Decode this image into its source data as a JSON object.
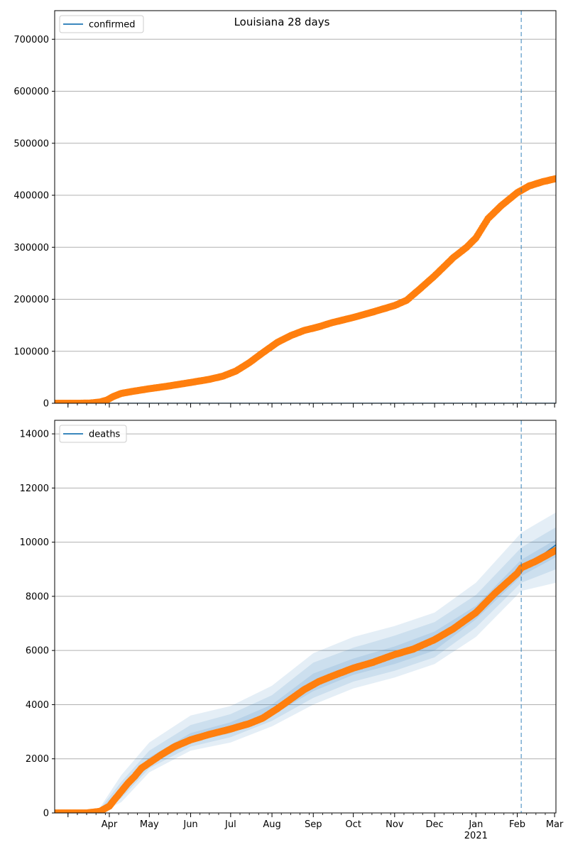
{
  "colors": {
    "observed": "#ff7f0e",
    "forecast": "#1f77b4",
    "band": "#1f77b4",
    "grid": "#b0b0b0",
    "cutoff": "#1f77b4"
  },
  "chart_data": [
    {
      "type": "line",
      "title": "Louisiana 28 days",
      "legend": [
        "confirmed"
      ],
      "legend_position": "top-left",
      "grid": "y",
      "x_range": [
        "2020-02-20",
        "2021-03-02"
      ],
      "cutoff_date": "2021-02-04",
      "ylim": [
        0,
        755000
      ],
      "y_ticks": [
        0,
        100000,
        200000,
        300000,
        400000,
        500000,
        600000,
        700000
      ],
      "observed_series": {
        "markers": "circle",
        "points": [
          [
            "2020-02-20",
            0
          ],
          [
            "2020-03-09",
            0
          ],
          [
            "2020-03-18",
            500
          ],
          [
            "2020-03-25",
            2500
          ],
          [
            "2020-03-30",
            6000
          ],
          [
            "2020-04-04",
            13000
          ],
          [
            "2020-04-10",
            19000
          ],
          [
            "2020-04-20",
            23500
          ],
          [
            "2020-05-01",
            28000
          ],
          [
            "2020-05-15",
            33000
          ],
          [
            "2020-06-01",
            40000
          ],
          [
            "2020-06-15",
            46000
          ],
          [
            "2020-06-25",
            52000
          ],
          [
            "2020-07-05",
            62000
          ],
          [
            "2020-07-15",
            78000
          ],
          [
            "2020-07-25",
            97000
          ],
          [
            "2020-08-05",
            117000
          ],
          [
            "2020-08-15",
            130000
          ],
          [
            "2020-08-25",
            140000
          ],
          [
            "2020-09-05",
            147000
          ],
          [
            "2020-09-15",
            155000
          ],
          [
            "2020-10-01",
            165000
          ],
          [
            "2020-10-15",
            175000
          ],
          [
            "2020-11-01",
            188000
          ],
          [
            "2020-11-10",
            198000
          ],
          [
            "2020-11-20",
            220000
          ],
          [
            "2020-12-01",
            245000
          ],
          [
            "2020-12-15",
            280000
          ],
          [
            "2020-12-25",
            300000
          ],
          [
            "2021-01-01",
            318000
          ],
          [
            "2021-01-10",
            355000
          ],
          [
            "2021-01-20",
            380000
          ],
          [
            "2021-02-01",
            405000
          ],
          [
            "2021-02-10",
            418000
          ],
          [
            "2021-02-20",
            426000
          ],
          [
            "2021-03-02",
            432000
          ]
        ]
      },
      "forecast_series": {
        "name": "confirmed",
        "points": [
          [
            "2020-02-20",
            0
          ],
          [
            "2021-03-02",
            0
          ]
        ]
      },
      "bands": []
    },
    {
      "type": "line",
      "legend": [
        "deaths"
      ],
      "legend_position": "top-left",
      "grid": "y",
      "x_range": [
        "2020-02-20",
        "2021-03-02"
      ],
      "cutoff_date": "2021-02-04",
      "ylim": [
        0,
        14500
      ],
      "y_ticks": [
        0,
        2000,
        4000,
        6000,
        8000,
        10000,
        12000,
        14000
      ],
      "x_tick_labels": [
        {
          "date": "2020-04-01",
          "label": "Apr"
        },
        {
          "date": "2020-05-01",
          "label": "May"
        },
        {
          "date": "2020-06-01",
          "label": "Jun"
        },
        {
          "date": "2020-07-01",
          "label": "Jul"
        },
        {
          "date": "2020-08-01",
          "label": "Aug"
        },
        {
          "date": "2020-09-01",
          "label": "Sep"
        },
        {
          "date": "2020-10-01",
          "label": "Oct"
        },
        {
          "date": "2020-11-01",
          "label": "Nov"
        },
        {
          "date": "2020-12-01",
          "label": "Dec"
        },
        {
          "date": "2021-01-01",
          "label": "Jan",
          "sublabel": "2021"
        },
        {
          "date": "2021-02-01",
          "label": "Feb"
        },
        {
          "date": "2021-03-01",
          "label": "Mar"
        }
      ],
      "observed_series": {
        "markers": "circle",
        "points": [
          [
            "2020-02-20",
            0
          ],
          [
            "2020-03-15",
            0
          ],
          [
            "2020-03-25",
            60
          ],
          [
            "2020-04-01",
            250
          ],
          [
            "2020-04-05",
            500
          ],
          [
            "2020-04-10",
            800
          ],
          [
            "2020-04-15",
            1100
          ],
          [
            "2020-04-20",
            1350
          ],
          [
            "2020-04-25",
            1650
          ],
          [
            "2020-05-01",
            1850
          ],
          [
            "2020-05-10",
            2150
          ],
          [
            "2020-05-20",
            2450
          ],
          [
            "2020-06-01",
            2700
          ],
          [
            "2020-06-15",
            2900
          ],
          [
            "2020-07-01",
            3100
          ],
          [
            "2020-07-15",
            3300
          ],
          [
            "2020-07-25",
            3500
          ],
          [
            "2020-08-05",
            3850
          ],
          [
            "2020-08-15",
            4200
          ],
          [
            "2020-08-25",
            4550
          ],
          [
            "2020-09-05",
            4850
          ],
          [
            "2020-09-15",
            5050
          ],
          [
            "2020-10-01",
            5350
          ],
          [
            "2020-10-15",
            5550
          ],
          [
            "2020-11-01",
            5850
          ],
          [
            "2020-11-15",
            6050
          ],
          [
            "2020-12-01",
            6400
          ],
          [
            "2020-12-15",
            6800
          ],
          [
            "2021-01-01",
            7400
          ],
          [
            "2021-01-15",
            8100
          ],
          [
            "2021-02-01",
            8850
          ],
          [
            "2021-02-04",
            9050
          ],
          [
            "2021-02-15",
            9300
          ],
          [
            "2021-03-02",
            9700
          ]
        ]
      },
      "forecast_series": {
        "name": "deaths",
        "points": [
          [
            "2020-02-20",
            0
          ],
          [
            "2020-03-15",
            0
          ],
          [
            "2020-03-25",
            60
          ],
          [
            "2020-04-01",
            250
          ],
          [
            "2020-04-05",
            500
          ],
          [
            "2020-04-10",
            800
          ],
          [
            "2020-04-15",
            1100
          ],
          [
            "2020-04-20",
            1350
          ],
          [
            "2020-04-25",
            1650
          ],
          [
            "2020-05-01",
            1850
          ],
          [
            "2020-05-10",
            2150
          ],
          [
            "2020-05-20",
            2450
          ],
          [
            "2020-06-01",
            2700
          ],
          [
            "2020-06-15",
            2900
          ],
          [
            "2020-07-01",
            3100
          ],
          [
            "2020-07-15",
            3300
          ],
          [
            "2020-07-25",
            3500
          ],
          [
            "2020-08-05",
            3850
          ],
          [
            "2020-08-15",
            4200
          ],
          [
            "2020-08-25",
            4550
          ],
          [
            "2020-09-05",
            4850
          ],
          [
            "2020-09-15",
            5050
          ],
          [
            "2020-10-01",
            5350
          ],
          [
            "2020-10-15",
            5550
          ],
          [
            "2020-11-01",
            5850
          ],
          [
            "2020-11-15",
            6050
          ],
          [
            "2020-12-01",
            6400
          ],
          [
            "2020-12-15",
            6800
          ],
          [
            "2021-01-01",
            7400
          ],
          [
            "2021-01-15",
            8100
          ],
          [
            "2021-02-01",
            8850
          ],
          [
            "2021-02-04",
            9050
          ],
          [
            "2021-02-15",
            9350
          ],
          [
            "2021-03-02",
            9900
          ]
        ]
      },
      "bands": [
        {
          "level": "outer",
          "x": [
            "2020-03-25",
            "2020-04-10",
            "2020-05-01",
            "2020-06-01",
            "2020-07-01",
            "2020-08-01",
            "2020-09-01",
            "2020-10-01",
            "2020-11-01",
            "2020-12-01",
            "2021-01-01",
            "2021-02-04",
            "2021-03-02"
          ],
          "upper": [
            200,
            1400,
            2600,
            3600,
            3950,
            4700,
            5900,
            6500,
            6900,
            7400,
            8500,
            10350,
            11100
          ],
          "lower": [
            0,
            400,
            1500,
            2300,
            2600,
            3200,
            4000,
            4600,
            5000,
            5500,
            6500,
            8200,
            8500
          ]
        },
        {
          "level": "middle",
          "x": [
            "2020-03-25",
            "2020-04-10",
            "2020-05-01",
            "2020-06-01",
            "2020-07-01",
            "2020-08-01",
            "2020-09-01",
            "2020-10-01",
            "2020-11-01",
            "2020-12-01",
            "2021-01-01",
            "2021-02-04",
            "2021-03-02"
          ],
          "upper": [
            150,
            1150,
            2300,
            3250,
            3650,
            4350,
            5550,
            6100,
            6550,
            7050,
            8050,
            9800,
            10550
          ],
          "lower": [
            0,
            550,
            1650,
            2450,
            2800,
            3400,
            4250,
            4850,
            5250,
            5750,
            6850,
            8500,
            9000
          ]
        },
        {
          "level": "inner",
          "x": [
            "2020-03-25",
            "2020-04-10",
            "2020-05-01",
            "2020-06-01",
            "2020-07-01",
            "2020-08-01",
            "2020-09-01",
            "2020-10-01",
            "2020-11-01",
            "2020-12-01",
            "2021-01-01",
            "2021-02-04",
            "2021-03-02"
          ],
          "upper": [
            100,
            950,
            2050,
            2950,
            3350,
            4000,
            5150,
            5700,
            6150,
            6700,
            7650,
            9350,
            10100
          ],
          "lower": [
            0,
            650,
            1750,
            2600,
            2950,
            3600,
            4500,
            5100,
            5500,
            6000,
            7150,
            8750,
            9450
          ]
        }
      ]
    }
  ]
}
